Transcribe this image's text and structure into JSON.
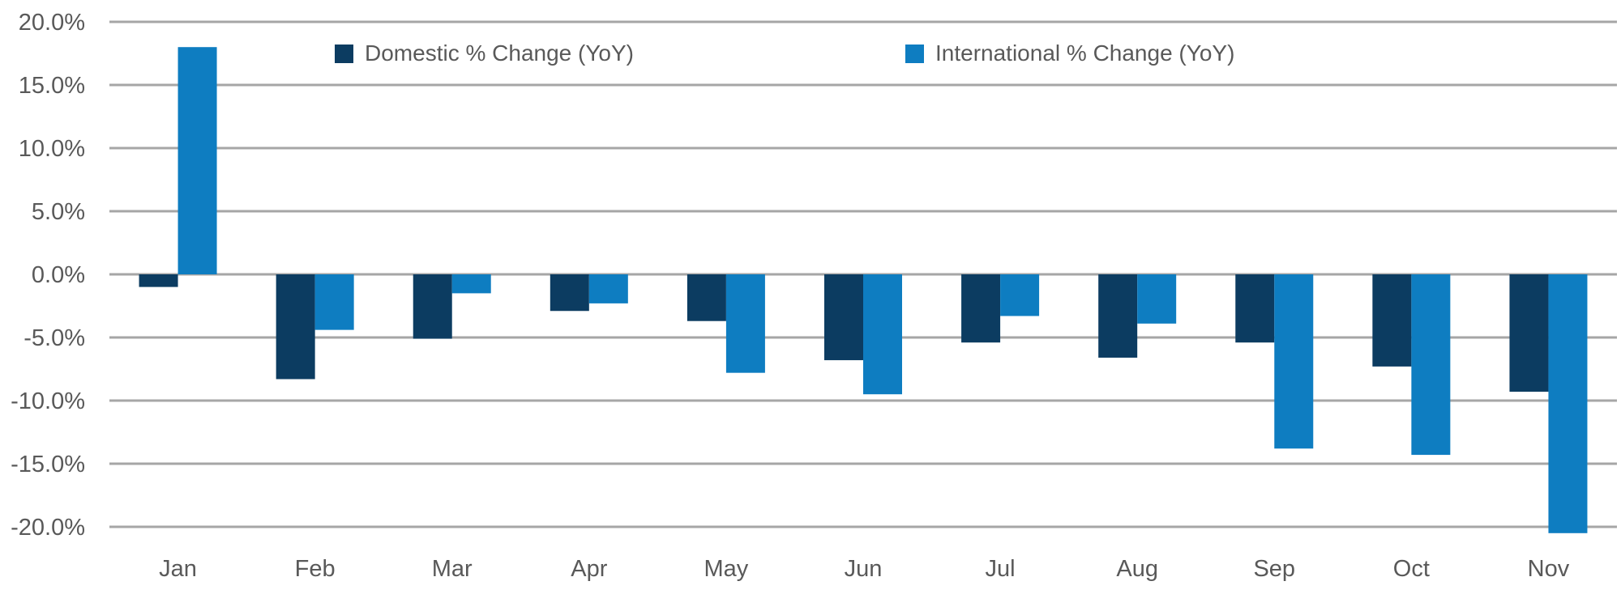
{
  "chart_data": {
    "type": "bar",
    "title": "",
    "xlabel": "",
    "ylabel": "",
    "categories": [
      "Jan",
      "Feb",
      "Mar",
      "Apr",
      "May",
      "Jun",
      "Jul",
      "Aug",
      "Sep",
      "Oct",
      "Nov"
    ],
    "series": [
      {
        "name": "Domestic % Change (YoY)",
        "color": "#0c3c61",
        "values": [
          -1.0,
          -8.3,
          -5.1,
          -2.9,
          -3.7,
          -6.8,
          -5.4,
          -6.6,
          -5.4,
          -7.3,
          -9.3
        ]
      },
      {
        "name": "International % Change (YoY)",
        "color": "#0e7dc1",
        "values": [
          18.0,
          -4.4,
          -1.5,
          -2.3,
          -7.8,
          -9.5,
          -3.3,
          -3.9,
          -13.8,
          -14.3,
          -20.5
        ]
      }
    ],
    "ylim": [
      -22,
      20
    ],
    "y_ticks": [
      {
        "value": 20,
        "label": "20.0%"
      },
      {
        "value": 15,
        "label": "15.0%"
      },
      {
        "value": 10,
        "label": "10.0%"
      },
      {
        "value": 5,
        "label": "5.0%"
      },
      {
        "value": 0,
        "label": "0.0%"
      },
      {
        "value": -5,
        "label": "-5.0%"
      },
      {
        "value": -10,
        "label": "-10.0%"
      },
      {
        "value": -15,
        "label": "-15.0%"
      },
      {
        "value": -20,
        "label": "-20.0%"
      }
    ],
    "grid": true,
    "legend_position": "top-inside"
  },
  "colors": {
    "background": "#ffffff",
    "gridline": "#a6a6a6",
    "axis_text": "#595959",
    "domestic": "#0c3c61",
    "international": "#0e7dc1"
  }
}
